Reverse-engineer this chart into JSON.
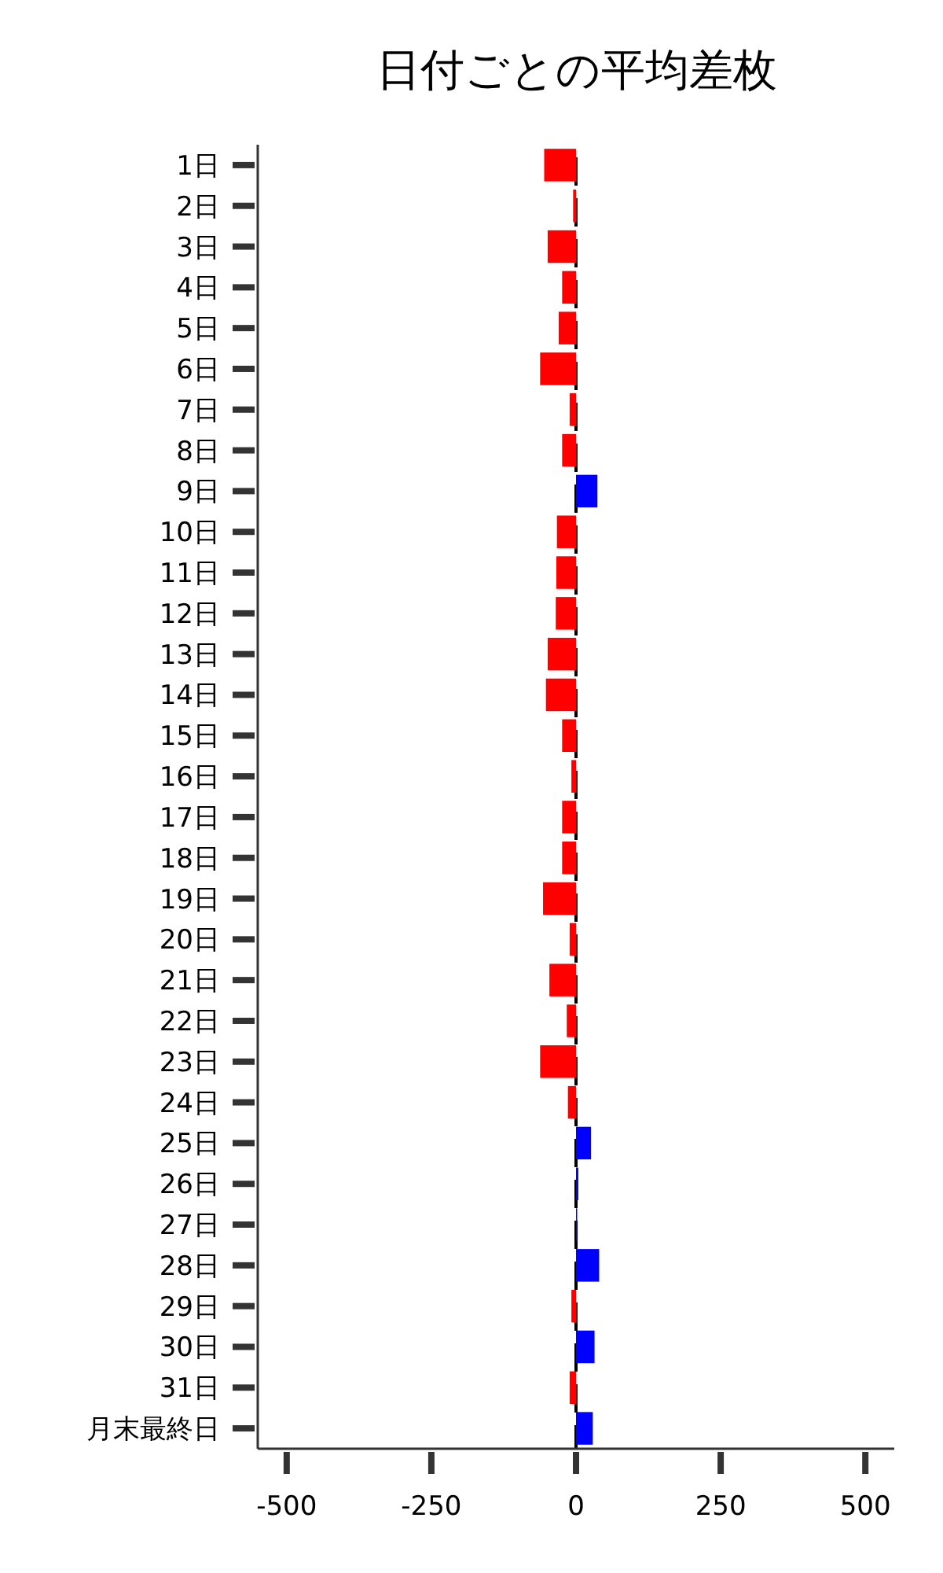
{
  "chart_data": {
    "type": "bar",
    "orientation": "horizontal",
    "title": "日付ごとの平均差枚",
    "categories": [
      "1日",
      "2日",
      "3日",
      "4日",
      "5日",
      "6日",
      "7日",
      "8日",
      "9日",
      "10日",
      "11日",
      "12日",
      "13日",
      "14日",
      "15日",
      "16日",
      "17日",
      "18日",
      "19日",
      "20日",
      "21日",
      "22日",
      "23日",
      "24日",
      "25日",
      "26日",
      "27日",
      "28日",
      "29日",
      "30日",
      "31日",
      "月末最終日"
    ],
    "values": [
      -55,
      -5,
      -49,
      -24,
      -30,
      -62,
      -11,
      -24,
      37,
      -33,
      -34,
      -35,
      -49,
      -52,
      -24,
      -8,
      -24,
      -24,
      -57,
      -11,
      -46,
      -16,
      -62,
      -14,
      26,
      4,
      2,
      40,
      -8,
      32,
      -11,
      29
    ],
    "colors": [
      "#ff0000",
      "#ff0000",
      "#ff0000",
      "#ff0000",
      "#ff0000",
      "#ff0000",
      "#ff0000",
      "#ff0000",
      "#0000ff",
      "#ff0000",
      "#ff0000",
      "#ff0000",
      "#ff0000",
      "#ff0000",
      "#ff0000",
      "#ff0000",
      "#ff0000",
      "#ff0000",
      "#ff0000",
      "#ff0000",
      "#ff0000",
      "#ff0000",
      "#ff0000",
      "#ff0000",
      "#0000ff",
      "#0000ff",
      "#0000ff",
      "#0000ff",
      "#ff0000",
      "#0000ff",
      "#ff0000",
      "#0000ff"
    ],
    "xlim": [
      -550,
      550
    ],
    "xticks": [
      -500,
      -250,
      0,
      250,
      500
    ],
    "ref_lines": [
      {
        "axis": "x",
        "value": 0,
        "color": "#000000",
        "line_style": "dashed"
      }
    ]
  }
}
